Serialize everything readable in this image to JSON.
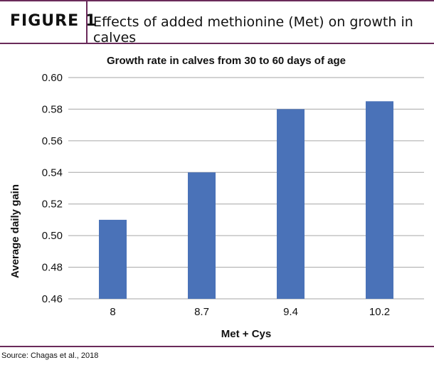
{
  "figure": {
    "label": "FIGURE 1",
    "title": "Effects of added methionine (Met) on growth in calves"
  },
  "source": "Source: Chagas et al., 2018",
  "chart_data": {
    "type": "bar",
    "title": "Growth rate in calves from 30 to 60 days of age",
    "xlabel": "Met + Cys",
    "ylabel": "Average daily gain",
    "categories": [
      "8",
      "8.7",
      "9.4",
      "10.2"
    ],
    "values": [
      0.51,
      0.54,
      0.58,
      0.585
    ],
    "ylim": [
      0.46,
      0.6
    ],
    "yticks": [
      "0.46",
      "0.48",
      "0.50",
      "0.52",
      "0.54",
      "0.56",
      "0.58",
      "0.60"
    ],
    "grid": true,
    "bar_color": "#4a72b8",
    "grid_color": "#a6a6a6"
  }
}
